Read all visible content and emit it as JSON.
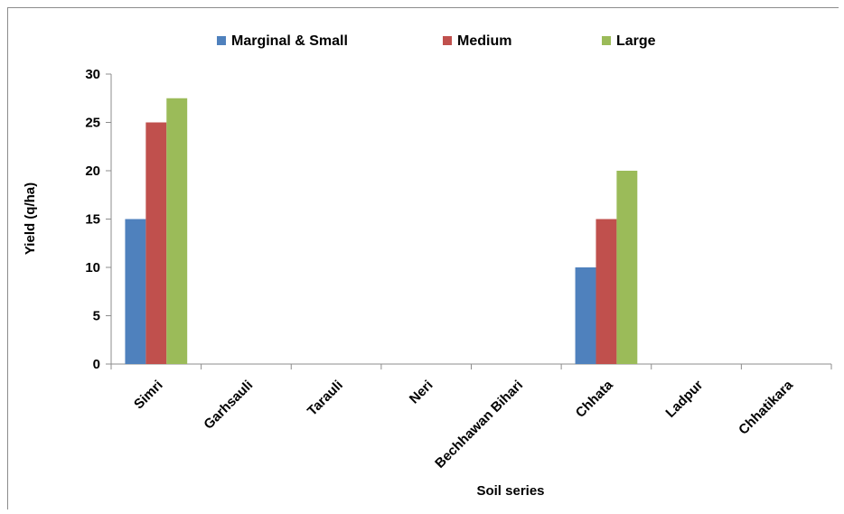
{
  "chart_data": {
    "type": "bar",
    "title": "",
    "xlabel": "Soil series",
    "ylabel": "Yield (q/ha)",
    "ylim": [
      0,
      30
    ],
    "yticks": [
      0,
      5,
      10,
      15,
      20,
      25,
      30
    ],
    "grid": false,
    "legend_position": "top",
    "categories": [
      "Simri",
      "Garhsauli",
      "Tarauli",
      "Neri",
      "Bechhawan Bihari",
      "Chhata",
      "Ladpur",
      "Chhatikara"
    ],
    "series": [
      {
        "name": "Marginal & Small",
        "color": "#4f81bd",
        "values": [
          15,
          0,
          0,
          0,
          0,
          10,
          0,
          0
        ]
      },
      {
        "name": "Medium",
        "color": "#c0504d",
        "values": [
          25,
          0,
          0,
          0,
          0,
          15,
          0,
          0
        ]
      },
      {
        "name": "Large",
        "color": "#9bbb59",
        "values": [
          27.5,
          0,
          0,
          0,
          0,
          20,
          0,
          0
        ]
      }
    ]
  }
}
